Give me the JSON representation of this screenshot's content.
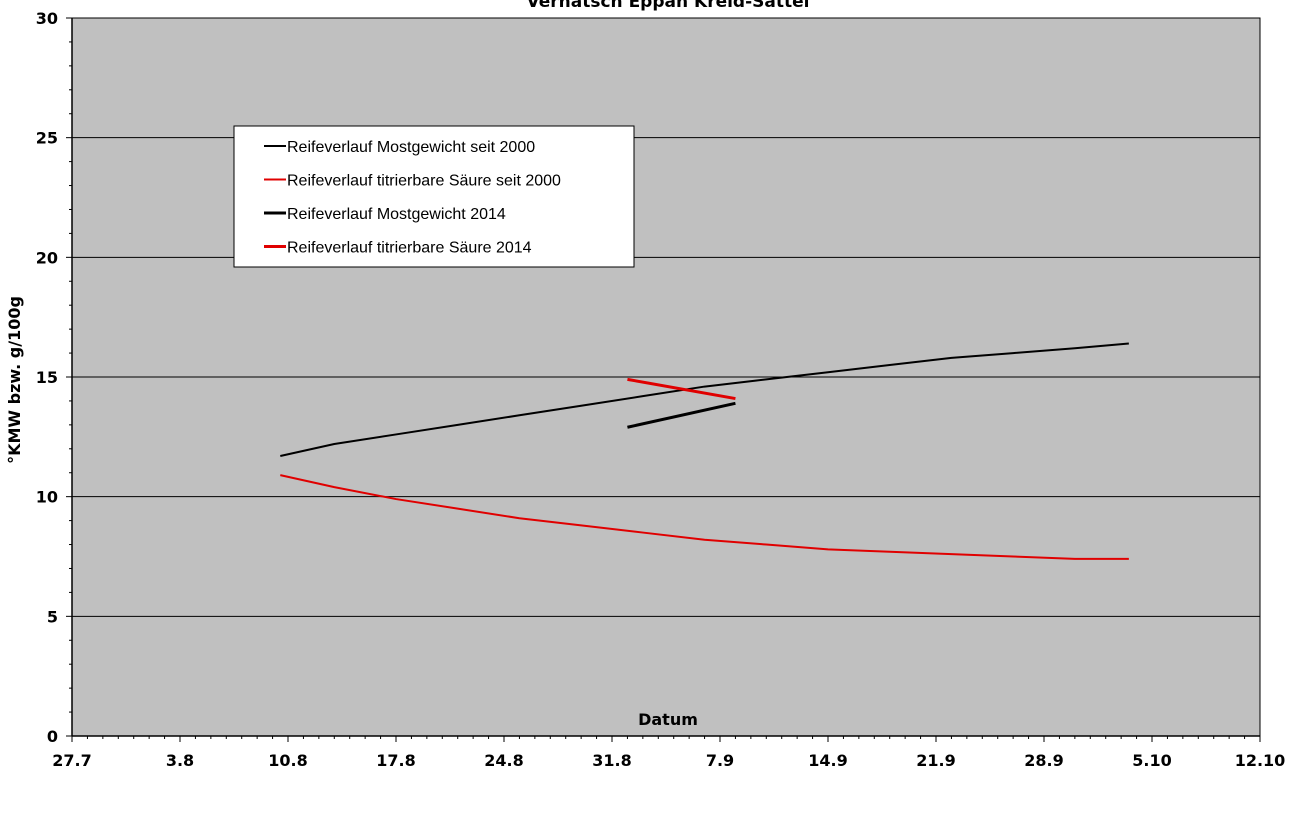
{
  "chart_data": {
    "type": "line",
    "title": "Vernatsch Eppan Kreid-Sattel",
    "xlabel": "Datum",
    "ylabel": "°KMW bzw. g/100g",
    "ylim": [
      0,
      30
    ],
    "y_ticks": [
      "0",
      "5",
      "10",
      "15",
      "20",
      "25",
      "30"
    ],
    "x_ticks": [
      "27.7",
      "3.8",
      "10.8",
      "17.8",
      "24.8",
      "31.8",
      "7.9",
      "14.9",
      "21.9",
      "28.9",
      "5.10",
      "12.10"
    ],
    "grid": "horizontal",
    "legend_position": "top-left",
    "plot_background": "#C0C0C0",
    "series": [
      {
        "name": "Reifeverlauf Mostgewicht seit 2000",
        "color": "#000000",
        "style": "thin",
        "points": [
          [
            13.5,
            11.7
          ],
          [
            17.0,
            12.2
          ],
          [
            21.0,
            12.6
          ],
          [
            25.0,
            13.0
          ],
          [
            29.0,
            13.4
          ],
          [
            33.0,
            13.8
          ],
          [
            37.0,
            14.2
          ],
          [
            41.0,
            14.6
          ],
          [
            45.0,
            14.9
          ],
          [
            49.0,
            15.2
          ],
          [
            53.0,
            15.5
          ],
          [
            57.0,
            15.8
          ],
          [
            61.0,
            16.0
          ],
          [
            65.0,
            16.2
          ],
          [
            68.5,
            16.4
          ]
        ]
      },
      {
        "name": "Reifeverlauf titrierbare Säure seit 2000",
        "color": "#E00000",
        "style": "thin",
        "points": [
          [
            13.5,
            10.9
          ],
          [
            17.0,
            10.4
          ],
          [
            21.0,
            9.9
          ],
          [
            25.0,
            9.5
          ],
          [
            29.0,
            9.1
          ],
          [
            33.0,
            8.8
          ],
          [
            37.0,
            8.5
          ],
          [
            41.0,
            8.2
          ],
          [
            45.0,
            8.0
          ],
          [
            49.0,
            7.8
          ],
          [
            53.0,
            7.7
          ],
          [
            57.0,
            7.6
          ],
          [
            61.0,
            7.5
          ],
          [
            65.0,
            7.4
          ],
          [
            68.5,
            7.4
          ]
        ]
      },
      {
        "name": "Reifeverlauf Mostgewicht 2014",
        "color": "#000000",
        "style": "thick",
        "points": [
          [
            36.0,
            12.9
          ],
          [
            43.0,
            13.9
          ]
        ]
      },
      {
        "name": "Reifeverlauf titrierbare Säure 2014",
        "color": "#E00000",
        "style": "thick",
        "points": [
          [
            36.0,
            14.9
          ],
          [
            43.0,
            14.1
          ]
        ]
      }
    ]
  }
}
